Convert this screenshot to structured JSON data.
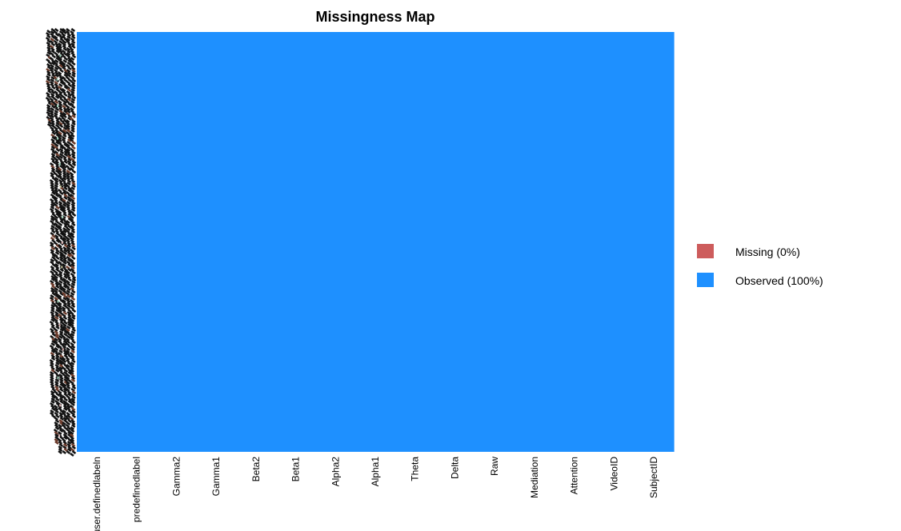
{
  "chart_data": {
    "type": "heatmap",
    "title": "Missingness Map",
    "columns": [
      "user.definedlabeln",
      "predefinedlabel",
      "Gamma2",
      "Gamma1",
      "Beta2",
      "Beta1",
      "Alpha2",
      "Alpha1",
      "Theta",
      "Delta",
      "Raw",
      "Mediation",
      "Attention",
      "VideoID",
      "SubjectID"
    ],
    "missing_fraction": [
      0,
      0,
      0,
      0,
      0,
      0,
      0,
      0,
      0,
      0,
      0,
      0,
      0,
      0,
      0
    ],
    "legend": [
      {
        "label": "Missing (0%)",
        "color": "#cd5c5c"
      },
      {
        "label": "Observed (100%)",
        "color": "#1e90ff"
      }
    ],
    "legend_position": "right",
    "row_labels": "dense, overlapping and illegible along the left edge"
  }
}
